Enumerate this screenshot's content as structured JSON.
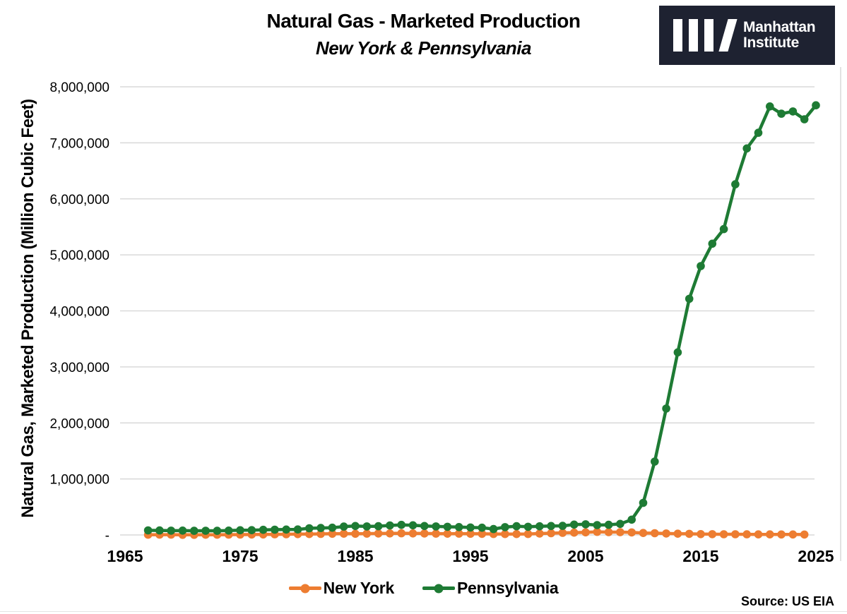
{
  "header": {
    "title": "Natural Gas - Marketed Production",
    "subtitle": "New York & Pennsylvania"
  },
  "logo": {
    "org_line1": "Manhattan",
    "org_line2": "Institute",
    "background_color": "#1e2231"
  },
  "source": "Source: US EIA",
  "chart_data": {
    "type": "line",
    "title": "Natural Gas - Marketed Production",
    "subtitle": "New York & Pennsylvania",
    "ylabel": "Natural Gas, Marketed Production (Million Cubic Feet)",
    "xlabel": "",
    "grid": "horizontal",
    "legend_position": "bottom",
    "x_ticks": [
      1965,
      1975,
      1985,
      1995,
      2005,
      2015,
      2025
    ],
    "y_ticks": [
      {
        "value": 0,
        "label": "-"
      },
      {
        "value": 1000000,
        "label": "1,000,000"
      },
      {
        "value": 2000000,
        "label": "2,000,000"
      },
      {
        "value": 3000000,
        "label": "3,000,000"
      },
      {
        "value": 4000000,
        "label": "4,000,000"
      },
      {
        "value": 5000000,
        "label": "5,000,000"
      },
      {
        "value": 6000000,
        "label": "6,000,000"
      },
      {
        "value": 7000000,
        "label": "7,000,000"
      },
      {
        "value": 8000000,
        "label": "8,000,000"
      }
    ],
    "ylim": [
      0,
      8300000
    ],
    "xlim": [
      1964,
      2026
    ],
    "series": [
      {
        "name": "New York",
        "color": "#ed7d31",
        "start_year": 1967,
        "end_year": 2024,
        "values": [
          4000,
          4500,
          5000,
          3000,
          3000,
          3500,
          4000,
          5000,
          6000,
          8000,
          9000,
          11000,
          13000,
          15000,
          17000,
          19000,
          21000,
          23000,
          21000,
          24000,
          26000,
          28000,
          30000,
          28000,
          26000,
          24000,
          23000,
          24000,
          22000,
          20000,
          18000,
          17000,
          16000,
          18000,
          25000,
          32000,
          38000,
          42000,
          46000,
          55000,
          50000,
          50000,
          45000,
          35000,
          31000,
          26000,
          23000,
          20000,
          15000,
          14000,
          13000,
          12000,
          11000,
          10000,
          10000,
          9000,
          9000,
          8000
        ]
      },
      {
        "name": "Pennsylvania",
        "color": "#1e7b34",
        "start_year": 1967,
        "end_year": 2025,
        "values": [
          82000,
          80000,
          77000,
          78000,
          74000,
          75000,
          74000,
          78000,
          84000,
          86000,
          92000,
          95000,
          97000,
          98000,
          120000,
          125000,
          130000,
          150000,
          160000,
          152000,
          156000,
          170000,
          180000,
          172000,
          160000,
          152000,
          146000,
          141000,
          134000,
          130000,
          106000,
          140000,
          156000,
          146000,
          155000,
          160000,
          162000,
          185000,
          190000,
          176000,
          182000,
          198000,
          274000,
          573000,
          1310000,
          2257000,
          3259000,
          4215000,
          4800000,
          5200000,
          5460000,
          6260000,
          6900000,
          7180000,
          7650000,
          7520000,
          7560000,
          7420000,
          7670000
        ]
      }
    ]
  }
}
